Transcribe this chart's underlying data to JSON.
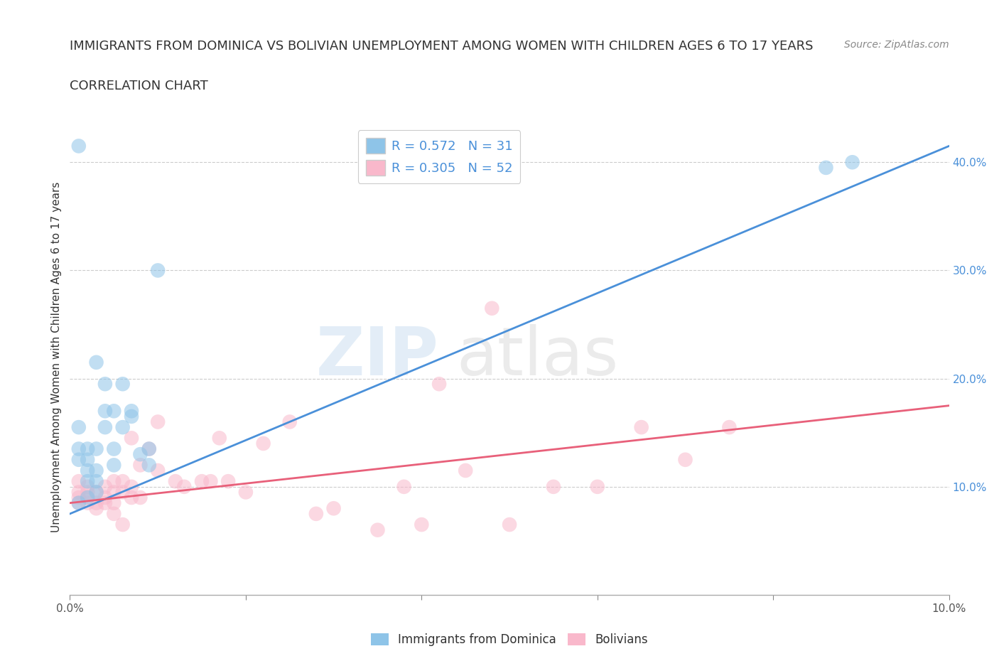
{
  "title": "IMMIGRANTS FROM DOMINICA VS BOLIVIAN UNEMPLOYMENT AMONG WOMEN WITH CHILDREN AGES 6 TO 17 YEARS",
  "subtitle": "CORRELATION CHART",
  "source": "Source: ZipAtlas.com",
  "ylabel": "Unemployment Among Women with Children Ages 6 to 17 years",
  "xlim": [
    0.0,
    0.1
  ],
  "ylim": [
    0.0,
    0.44
  ],
  "xticks": [
    0.0,
    0.02,
    0.04,
    0.06,
    0.08,
    0.1
  ],
  "yticks": [
    0.1,
    0.2,
    0.3,
    0.4
  ],
  "xtick_labels": [
    "0.0%",
    "",
    "",
    "",
    "",
    "10.0%"
  ],
  "ytick_labels": [
    "10.0%",
    "20.0%",
    "30.0%",
    "40.0%"
  ],
  "color_blue": "#8ec4e8",
  "color_pink": "#f9b8cb",
  "line_blue": "#4a90d9",
  "line_pink": "#e8607a",
  "R_blue": 0.572,
  "N_blue": 31,
  "R_pink": 0.305,
  "N_pink": 52,
  "legend_label_blue": "Immigrants from Dominica",
  "legend_label_pink": "Bolivians",
  "watermark_zip": "ZIP",
  "watermark_atlas": "atlas",
  "blue_x": [
    0.001,
    0.001,
    0.001,
    0.002,
    0.002,
    0.002,
    0.002,
    0.003,
    0.003,
    0.003,
    0.003,
    0.004,
    0.004,
    0.004,
    0.005,
    0.005,
    0.005,
    0.006,
    0.006,
    0.007,
    0.007,
    0.008,
    0.009,
    0.009,
    0.01,
    0.003,
    0.002,
    0.001,
    0.001,
    0.086,
    0.089
  ],
  "blue_y": [
    0.135,
    0.125,
    0.155,
    0.135,
    0.125,
    0.115,
    0.105,
    0.135,
    0.115,
    0.105,
    0.215,
    0.155,
    0.17,
    0.195,
    0.135,
    0.12,
    0.17,
    0.155,
    0.195,
    0.165,
    0.17,
    0.13,
    0.12,
    0.135,
    0.3,
    0.095,
    0.09,
    0.085,
    0.415,
    0.395,
    0.4
  ],
  "pink_x": [
    0.001,
    0.001,
    0.001,
    0.001,
    0.002,
    0.002,
    0.002,
    0.002,
    0.003,
    0.003,
    0.003,
    0.004,
    0.004,
    0.004,
    0.005,
    0.005,
    0.005,
    0.006,
    0.006,
    0.007,
    0.007,
    0.008,
    0.008,
    0.009,
    0.01,
    0.012,
    0.013,
    0.015,
    0.016,
    0.017,
    0.018,
    0.02,
    0.022,
    0.025,
    0.028,
    0.03,
    0.035,
    0.038,
    0.04,
    0.042,
    0.045,
    0.048,
    0.05,
    0.055,
    0.06,
    0.065,
    0.07,
    0.075,
    0.005,
    0.006,
    0.007,
    0.01
  ],
  "pink_y": [
    0.095,
    0.09,
    0.085,
    0.105,
    0.085,
    0.09,
    0.095,
    0.1,
    0.08,
    0.085,
    0.095,
    0.085,
    0.09,
    0.1,
    0.085,
    0.095,
    0.105,
    0.095,
    0.105,
    0.09,
    0.1,
    0.09,
    0.12,
    0.135,
    0.115,
    0.105,
    0.1,
    0.105,
    0.105,
    0.145,
    0.105,
    0.095,
    0.14,
    0.16,
    0.075,
    0.08,
    0.06,
    0.1,
    0.065,
    0.195,
    0.115,
    0.265,
    0.065,
    0.1,
    0.1,
    0.155,
    0.125,
    0.155,
    0.075,
    0.065,
    0.145,
    0.16
  ],
  "blue_line_x": [
    0.0,
    0.1
  ],
  "blue_line_y": [
    0.075,
    0.415
  ],
  "pink_line_x": [
    0.0,
    0.1
  ],
  "pink_line_y": [
    0.085,
    0.175
  ],
  "title_fontsize": 13,
  "subtitle_fontsize": 13,
  "tick_fontsize": 11,
  "ylabel_fontsize": 11,
  "legend_fontsize": 13
}
